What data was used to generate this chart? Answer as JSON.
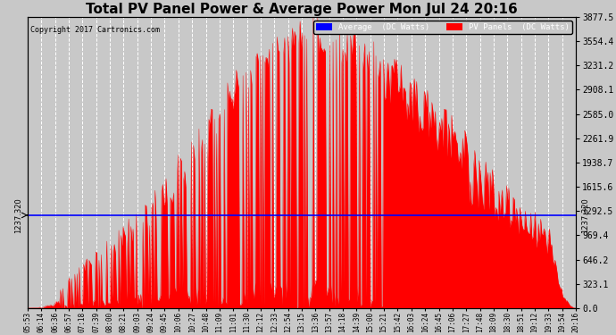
{
  "title": "Total PV Panel Power & Average Power Mon Jul 24 20:16",
  "copyright": "Copyright 2017 Cartronics.com",
  "legend_labels": [
    "Average  (DC Watts)",
    "PV Panels  (DC Watts)"
  ],
  "legend_colors": [
    "#0000ff",
    "#ff0000"
  ],
  "avg_line_value": 1237.32,
  "avg_label": "1237.320",
  "ymax": 3877.5,
  "ymin": 0.0,
  "yticks": [
    0.0,
    323.1,
    646.2,
    969.4,
    1292.5,
    1615.6,
    1938.7,
    2261.9,
    2585.0,
    2908.1,
    3231.2,
    3554.4,
    3877.5
  ],
  "background_color": "#c8c8c8",
  "plot_bg_color": "#c8c8c8",
  "grid_color": "#ffffff",
  "bar_color": "#ff0000",
  "avg_color": "#0000ff",
  "title_fontsize": 11,
  "xtick_labels": [
    "05:53",
    "06:14",
    "06:36",
    "06:57",
    "07:18",
    "07:39",
    "08:00",
    "08:21",
    "09:03",
    "09:24",
    "09:45",
    "10:06",
    "10:27",
    "10:48",
    "11:09",
    "11:01",
    "11:30",
    "12:12",
    "12:33",
    "12:54",
    "13:15",
    "13:36",
    "13:57",
    "14:18",
    "14:39",
    "15:00",
    "15:21",
    "15:42",
    "16:03",
    "16:24",
    "16:45",
    "17:06",
    "17:27",
    "17:48",
    "18:09",
    "18:30",
    "18:51",
    "19:12",
    "19:33",
    "19:54",
    "20:16"
  ]
}
